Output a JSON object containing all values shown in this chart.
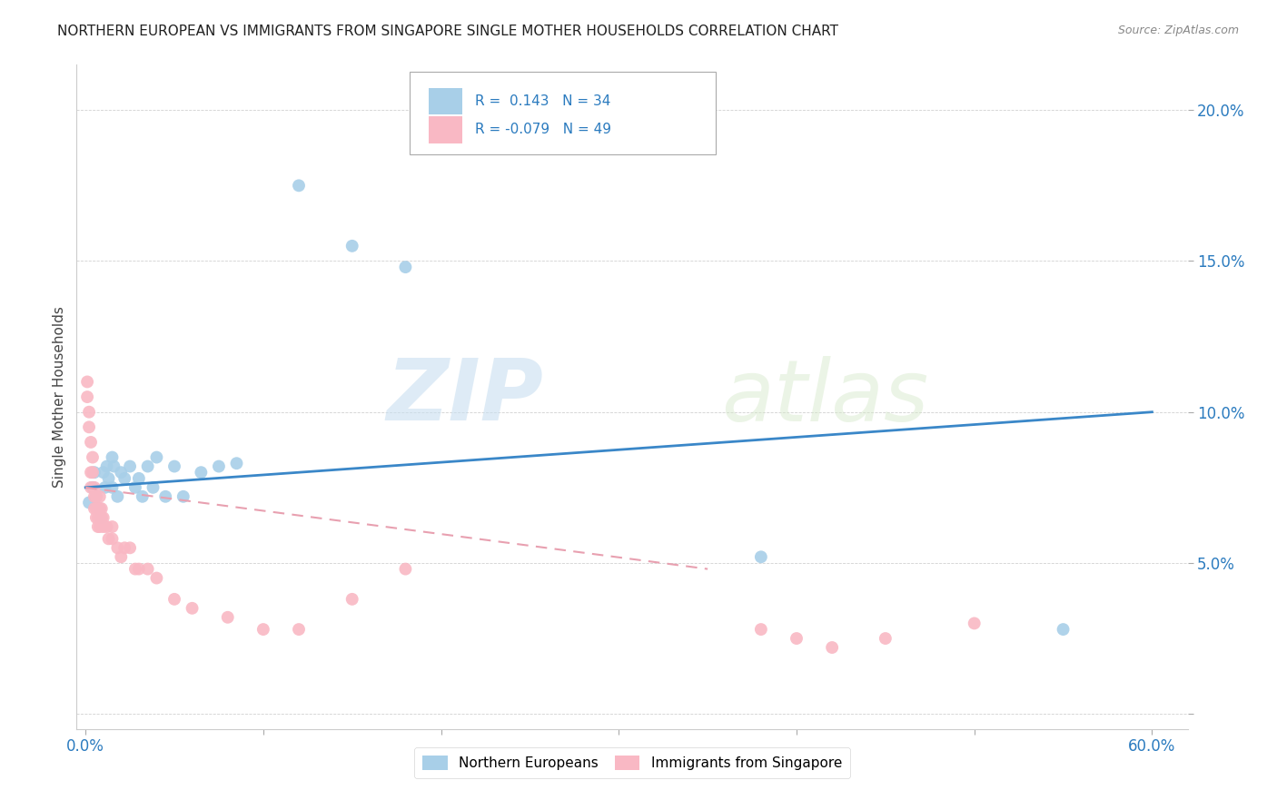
{
  "title": "NORTHERN EUROPEAN VS IMMIGRANTS FROM SINGAPORE SINGLE MOTHER HOUSEHOLDS CORRELATION CHART",
  "source": "Source: ZipAtlas.com",
  "ylabel": "Single Mother Households",
  "legend_blue_r": " 0.143",
  "legend_blue_n": "34",
  "legend_pink_r": "-0.079",
  "legend_pink_n": "49",
  "blue_color": "#a8cfe8",
  "pink_color": "#f9b8c4",
  "blue_line_color": "#3a87c8",
  "pink_line_color": "#e8a0b0",
  "watermark_zip": "ZIP",
  "watermark_atlas": "atlas",
  "blue_scatter_x": [
    0.002,
    0.004,
    0.005,
    0.006,
    0.008,
    0.009,
    0.01,
    0.011,
    0.012,
    0.013,
    0.015,
    0.015,
    0.016,
    0.018,
    0.02,
    0.022,
    0.025,
    0.028,
    0.03,
    0.032,
    0.035,
    0.038,
    0.04,
    0.045,
    0.05,
    0.055,
    0.065,
    0.075,
    0.085,
    0.12,
    0.15,
    0.18,
    0.38,
    0.55
  ],
  "blue_scatter_y": [
    0.07,
    0.075,
    0.08,
    0.072,
    0.068,
    0.065,
    0.08,
    0.075,
    0.082,
    0.078,
    0.085,
    0.075,
    0.082,
    0.072,
    0.08,
    0.078,
    0.082,
    0.075,
    0.078,
    0.072,
    0.082,
    0.075,
    0.085,
    0.072,
    0.082,
    0.072,
    0.08,
    0.082,
    0.083,
    0.175,
    0.155,
    0.148,
    0.052,
    0.028
  ],
  "pink_scatter_x": [
    0.001,
    0.001,
    0.002,
    0.002,
    0.003,
    0.003,
    0.003,
    0.004,
    0.004,
    0.005,
    0.005,
    0.005,
    0.006,
    0.006,
    0.006,
    0.007,
    0.007,
    0.007,
    0.008,
    0.008,
    0.008,
    0.009,
    0.009,
    0.01,
    0.01,
    0.012,
    0.013,
    0.015,
    0.015,
    0.018,
    0.02,
    0.022,
    0.025,
    0.028,
    0.03,
    0.035,
    0.04,
    0.05,
    0.06,
    0.08,
    0.1,
    0.12,
    0.15,
    0.18,
    0.38,
    0.4,
    0.42,
    0.45,
    0.5
  ],
  "pink_scatter_y": [
    0.11,
    0.105,
    0.095,
    0.1,
    0.08,
    0.075,
    0.09,
    0.085,
    0.08,
    0.075,
    0.072,
    0.068,
    0.072,
    0.068,
    0.065,
    0.068,
    0.065,
    0.062,
    0.072,
    0.068,
    0.062,
    0.068,
    0.065,
    0.065,
    0.062,
    0.062,
    0.058,
    0.062,
    0.058,
    0.055,
    0.052,
    0.055,
    0.055,
    0.048,
    0.048,
    0.048,
    0.045,
    0.038,
    0.035,
    0.032,
    0.028,
    0.028,
    0.038,
    0.048,
    0.028,
    0.025,
    0.022,
    0.025,
    0.03
  ],
  "xlim": [
    -0.005,
    0.62
  ],
  "ylim": [
    -0.005,
    0.215
  ],
  "ytick_vals": [
    0.0,
    0.05,
    0.1,
    0.15,
    0.2
  ],
  "ytick_labels": [
    "",
    "5.0%",
    "10.0%",
    "15.0%",
    "20.0%"
  ],
  "xtick_vals": [
    0.0,
    0.1,
    0.2,
    0.3,
    0.4,
    0.5,
    0.6
  ],
  "xtick_labels": [
    "0.0%",
    "",
    "",
    "",
    "",
    "",
    "60.0%"
  ]
}
